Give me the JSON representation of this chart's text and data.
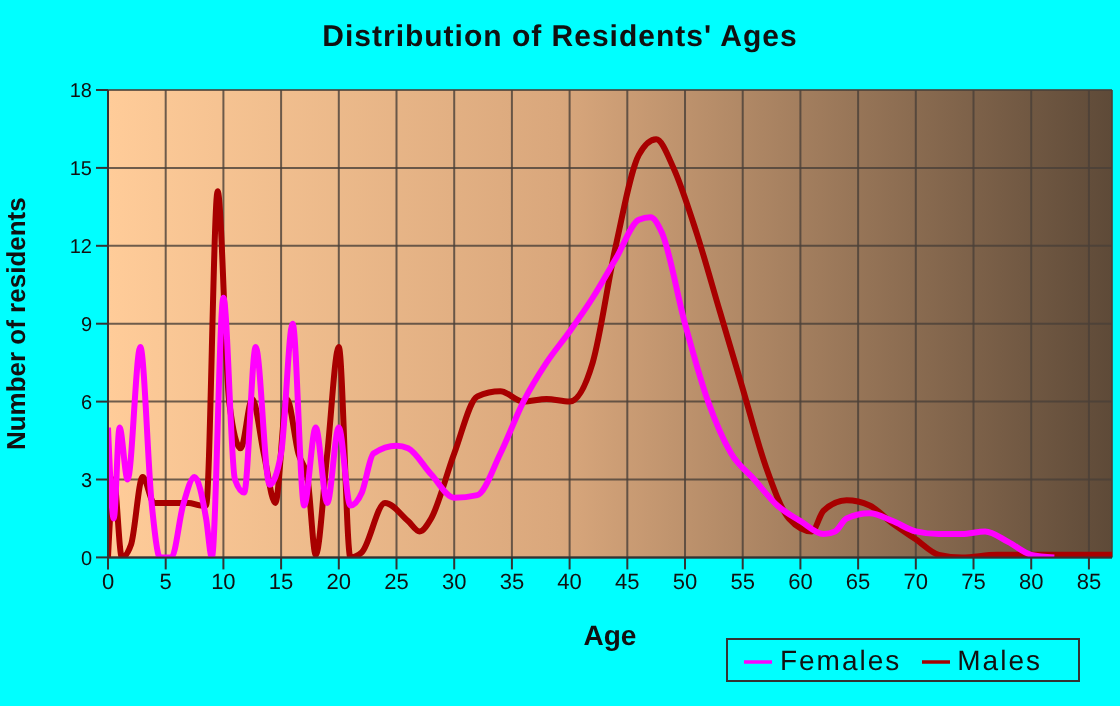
{
  "chart_data": {
    "type": "line",
    "title": "Distribution of Residents' Ages",
    "xlabel": "Age",
    "ylabel": "Number of residents",
    "xlim": [
      0,
      87
    ],
    "xticks": [
      0,
      5,
      10,
      15,
      20,
      25,
      30,
      35,
      40,
      45,
      50,
      55,
      60,
      65,
      70,
      75,
      80,
      85
    ],
    "ylim": [
      0,
      18
    ],
    "yticks": [
      0,
      3,
      6,
      9,
      12,
      15,
      18
    ],
    "grid": true,
    "legend": "bottom right",
    "marker": "none",
    "line_style": "solid",
    "series": [
      {
        "name": "Males",
        "color": "#a80000",
        "x": [
          0,
          0.5,
          1.2,
          2,
          3,
          4,
          5,
          6,
          7,
          8,
          8.5,
          9.5,
          10.5,
          11.5,
          12.5,
          13.5,
          14.5,
          15.5,
          16.5,
          17.3,
          18,
          19,
          20,
          21,
          22,
          24,
          26,
          27,
          28,
          30,
          32,
          34,
          36,
          38,
          40,
          42,
          44,
          46,
          47.5,
          49,
          51,
          53,
          55,
          57,
          59,
          61,
          62,
          64,
          66,
          68,
          70,
          72,
          74,
          77,
          80,
          87
        ],
        "values": [
          0,
          3,
          0,
          0.5,
          3.1,
          2.1,
          2.1,
          2.1,
          2.1,
          2,
          2,
          14.1,
          6,
          4.2,
          6.1,
          4,
          2.1,
          6.1,
          4,
          3,
          0.1,
          4,
          8.1,
          0,
          0.2,
          2.1,
          1.4,
          1,
          1.5,
          4,
          6.2,
          6.4,
          6,
          6.1,
          6,
          7.5,
          12,
          15.5,
          16.1,
          15,
          12.5,
          9.5,
          6.5,
          3.5,
          1.5,
          1,
          1.8,
          2.2,
          2,
          1.3,
          0.7,
          0.1,
          0,
          0.1,
          0.1,
          0.1
        ]
      },
      {
        "name": "Females",
        "color": "#ff00ff",
        "x": [
          0,
          0.5,
          1,
          1.7,
          2.8,
          3.8,
          4.5,
          5.5,
          6.5,
          7.5,
          8.5,
          9,
          10,
          11,
          11.8,
          12.8,
          14,
          15,
          16,
          17,
          18,
          19,
          20,
          21,
          22,
          23,
          25,
          26,
          28,
          30,
          32,
          34,
          36,
          38,
          40,
          42,
          44,
          46,
          47,
          48,
          50,
          52,
          54,
          56,
          58,
          60,
          62,
          63,
          64,
          66,
          68,
          70,
          72,
          74,
          76,
          78,
          80,
          82
        ],
        "values": [
          5,
          1.5,
          5,
          3,
          8.1,
          2,
          0,
          0,
          2,
          3.1,
          1.5,
          0,
          10,
          3,
          2.5,
          8.1,
          2.8,
          4,
          9,
          2,
          5,
          2.1,
          5,
          2,
          2.5,
          4,
          4.3,
          4.2,
          3.2,
          2.3,
          2.4,
          4,
          6,
          7.5,
          8.7,
          10,
          11.5,
          13,
          13.1,
          12.5,
          9,
          6,
          4,
          3,
          2,
          1.4,
          0.9,
          1,
          1.5,
          1.7,
          1.4,
          1,
          0.9,
          0.9,
          1,
          0.6,
          0.1,
          0
        ]
      }
    ]
  }
}
